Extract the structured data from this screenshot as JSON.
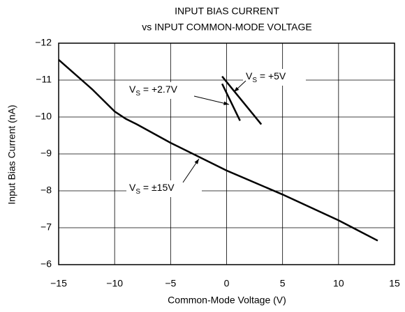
{
  "chart_data": {
    "type": "line",
    "title": [
      "INPUT BIAS CURRENT",
      "vs INPUT COMMON-MODE VOLTAGE"
    ],
    "xlabel": "Common-Mode Voltage (V)",
    "ylabel": "Input Bias Current (nA)",
    "xlim": [
      -15,
      15
    ],
    "xticks": [
      {
        "value": -15,
        "label": "−15"
      },
      {
        "value": -10,
        "label": "−10"
      },
      {
        "value": -5,
        "label": "−5"
      },
      0,
      5,
      10,
      15
    ],
    "ylim": [
      -6,
      -12
    ],
    "yticks": [
      {
        "value": -6,
        "label": "−6"
      },
      {
        "value": -7,
        "label": "−7"
      },
      {
        "value": -8,
        "label": "−8"
      },
      {
        "value": -9,
        "label": "−9"
      },
      {
        "value": -10,
        "label": "−10"
      },
      {
        "value": -11,
        "label": "−11"
      },
      {
        "value": -12,
        "label": "−12"
      }
    ],
    "grid": true,
    "series": [
      {
        "label": {
          "v": "V",
          "sub": "S",
          "rest": " = ±15V"
        },
        "color": "#000000",
        "x": [
          -15,
          -12,
          -10,
          -9,
          -8,
          -5,
          0,
          5,
          10,
          13.5
        ],
        "values": [
          -11.55,
          -10.75,
          -10.15,
          -9.95,
          -9.8,
          -9.3,
          -8.55,
          -7.9,
          -7.2,
          -6.65
        ]
      },
      {
        "label": {
          "v": "V",
          "sub": "S",
          "rest": " = +2.7V"
        },
        "color": "#000000",
        "x": [
          -0.4,
          1.2
        ],
        "values": [
          -10.9,
          -9.9
        ]
      },
      {
        "label": {
          "v": "V",
          "sub": "S",
          "rest": " = +5V"
        },
        "color": "#000000",
        "x": [
          -0.4,
          3.1
        ],
        "values": [
          -11.1,
          -9.8
        ]
      }
    ]
  }
}
